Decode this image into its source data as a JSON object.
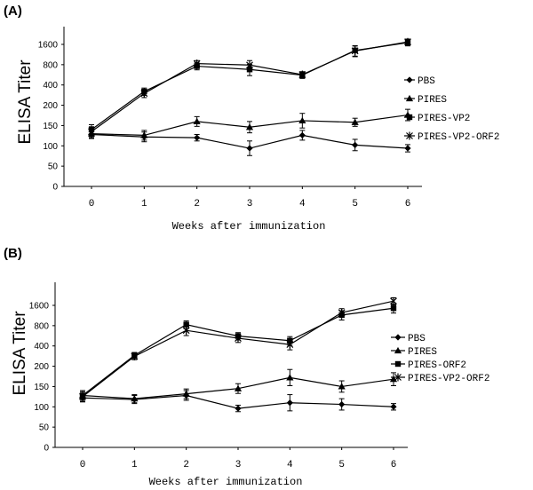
{
  "chart_data": [
    {
      "type": "line",
      "panel_label": "(A)",
      "ylabel": "ELISA Titer",
      "xlabel": "Weeks after immunization",
      "x": [
        0,
        1,
        2,
        3,
        4,
        5,
        6
      ],
      "xticks": [
        "0",
        "1",
        "2",
        "3",
        "4",
        "5",
        "6"
      ],
      "yticks": [
        "0",
        "50",
        "100",
        "150",
        "200",
        "400",
        "800",
        "1600"
      ],
      "yscale": "ordinal (0, 50, 100, 150, 200, 400, 800, 1600 equally spaced)",
      "legend_position": "right",
      "series": [
        {
          "name": "PBS",
          "marker": "diamond",
          "values": [
            128,
            122,
            120,
            94,
            126,
            102,
            94
          ],
          "errors": [
            10,
            12,
            8,
            18,
            12,
            14,
            9
          ]
        },
        {
          "name": "PIRES",
          "marker": "triangle",
          "values": [
            130,
            126,
            160,
            146,
            162,
            158,
            176
          ],
          "errors": [
            10,
            12,
            12,
            14,
            18,
            10,
            14
          ]
        },
        {
          "name": "PIRES-VP2",
          "marker": "square",
          "values": [
            140,
            320,
            760,
            680,
            560,
            1300,
            1700
          ],
          "errors": [
            12,
            40,
            90,
            130,
            60,
            230,
            180
          ]
        },
        {
          "name": "PIRES-VP2-ORF2",
          "marker": "star",
          "values": [
            135,
            300,
            830,
            790,
            570,
            1280,
            1740
          ],
          "errors": [
            12,
            40,
            90,
            130,
            60,
            230,
            180
          ]
        }
      ]
    },
    {
      "type": "line",
      "panel_label": "(B)",
      "ylabel": "ELISA Titer",
      "xlabel": "Weeks after immunization",
      "x": [
        0,
        1,
        2,
        3,
        4,
        5,
        6
      ],
      "xticks": [
        "0",
        "1",
        "2",
        "3",
        "4",
        "5",
        "6"
      ],
      "yticks": [
        "0",
        "50",
        "100",
        "150",
        "200",
        "400",
        "800",
        "1600"
      ],
      "yscale": "ordinal (0, 50, 100, 150, 200, 400, 800, 1600 equally spaced)",
      "legend_position": "right",
      "series": [
        {
          "name": "PBS",
          "marker": "diamond",
          "values": [
            122,
            118,
            128,
            96,
            110,
            106,
            100
          ],
          "errors": [
            10,
            10,
            12,
            8,
            20,
            14,
            8
          ]
        },
        {
          "name": "PIRES",
          "marker": "triangle",
          "values": [
            128,
            120,
            132,
            145,
            172,
            150,
            168
          ],
          "errors": [
            12,
            10,
            12,
            12,
            20,
            14,
            16
          ]
        },
        {
          "name": "PIRES-ORF2",
          "marker": "square",
          "values": [
            128,
            290,
            830,
            560,
            480,
            1150,
            1450
          ],
          "errors": [
            12,
            30,
            110,
            70,
            70,
            180,
            220
          ]
        },
        {
          "name": "PIRES-VP2-ORF2",
          "marker": "star",
          "values": [
            125,
            280,
            680,
            520,
            420,
            1250,
            1850
          ],
          "errors": [
            12,
            30,
            110,
            70,
            70,
            180,
            220
          ]
        }
      ]
    }
  ]
}
